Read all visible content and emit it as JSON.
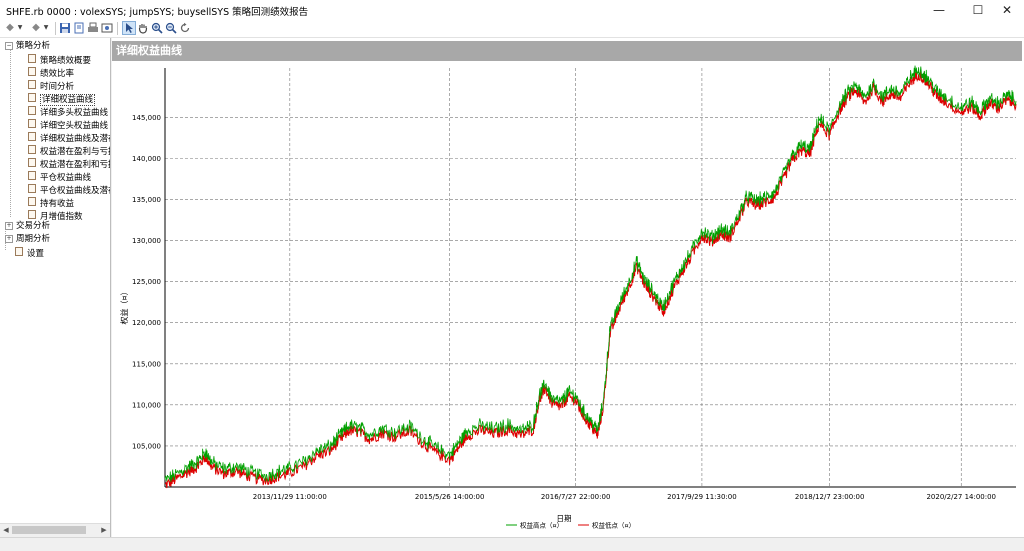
{
  "window": {
    "title": "SHFE.rb 0000 : volexSYS; jumpSYS; buysellSYS 策略回测绩效报告",
    "controls": {
      "minimize": "—",
      "maximize": "☐",
      "close": "✕"
    }
  },
  "toolbar": {
    "buttons": [
      {
        "icon": "back-arrow-icon"
      },
      {
        "icon": "dropdown-icon"
      },
      {
        "icon": "forward-arrow-icon"
      },
      {
        "icon": "dropdown-icon"
      },
      {
        "icon": "save-icon"
      },
      {
        "icon": "export-icon"
      },
      {
        "icon": "print-icon"
      },
      {
        "icon": "print-preview-icon"
      },
      {
        "icon": "pointer-icon"
      },
      {
        "icon": "hand-pan-icon"
      },
      {
        "icon": "zoom-in-icon"
      },
      {
        "icon": "zoom-out-icon"
      },
      {
        "icon": "reset-icon"
      }
    ]
  },
  "sidebar": {
    "tree": [
      {
        "label": "策略分析",
        "expanded": true,
        "children": [
          {
            "label": "策略绩效概要"
          },
          {
            "label": "绩效比率"
          },
          {
            "label": "时间分析"
          },
          {
            "label": "详细权益曲线",
            "selected": true
          },
          {
            "label": "详细多头权益曲线"
          },
          {
            "label": "详细空头权益曲线"
          },
          {
            "label": "详细权益曲线及潜在"
          },
          {
            "label": "权益潜在盈利与亏损"
          },
          {
            "label": "权益潜在盈利和亏损"
          },
          {
            "label": "平仓权益曲线"
          },
          {
            "label": "平仓权益曲线及潜在"
          },
          {
            "label": "持有收益"
          },
          {
            "label": "月增值指数"
          }
        ]
      },
      {
        "label": "交易分析",
        "expanded": false
      },
      {
        "label": "周期分析",
        "expanded": false
      },
      {
        "label": "设置",
        "leaf": true
      }
    ]
  },
  "panel": {
    "title": "详细权益曲线"
  },
  "chart_data": {
    "type": "line",
    "title": "",
    "xlabel": "日期",
    "ylabel": "权益（¤）",
    "ylim": [
      100000,
      151000
    ],
    "yticks": [
      105000,
      110000,
      115000,
      120000,
      125000,
      130000,
      135000,
      140000,
      145000
    ],
    "ytick_labels": [
      "105,000",
      "110,000",
      "115,000",
      "120,000",
      "125,000",
      "130,000",
      "135,000",
      "140,000",
      "145,000"
    ],
    "x_ticks": [
      "2013/11/29 11:00:00",
      "2015/5/26 14:00:00",
      "2016/7/27 22:00:00",
      "2017/9/29 11:30:00",
      "2018/12/7 23:00:00",
      "2020/2/27 14:00:00"
    ],
    "grid": true,
    "legend_position": "bottom-center",
    "series": [
      {
        "name": "权益高点（¤）",
        "color": "#00a000"
      },
      {
        "name": "权益低点（¤）",
        "color": "#dd0000"
      }
    ],
    "equity_points": [
      [
        "2012/10/1",
        100200
      ],
      [
        "2012/11/10",
        101000
      ],
      [
        "2012/12/20",
        101900
      ],
      [
        "2013/1/20",
        102500
      ],
      [
        "2013/2/15",
        103700
      ],
      [
        "2013/3/10",
        102400
      ],
      [
        "2013/4/20",
        101600
      ],
      [
        "2013/6/1",
        101900
      ],
      [
        "2013/7/20",
        101200
      ],
      [
        "2013/9/10",
        100800
      ],
      [
        "2013/10/20",
        101300
      ],
      [
        "2013/11/29",
        101700
      ],
      [
        "2014/1/15",
        102500
      ],
      [
        "2014/3/1",
        103800
      ],
      [
        "2014/4/15",
        104400
      ],
      [
        "2014/5/20",
        105800
      ],
      [
        "2014/6/20",
        106900
      ],
      [
        "2014/7/25",
        106600
      ],
      [
        "2014/8/30",
        105800
      ],
      [
        "2014/10/10",
        106600
      ],
      [
        "2014/11/20",
        106100
      ],
      [
        "2015/1/10",
        106800
      ],
      [
        "2015/3/1",
        105200
      ],
      [
        "2015/4/10",
        104200
      ],
      [
        "2015/5/26",
        103300
      ],
      [
        "2015/6/25",
        104800
      ],
      [
        "2015/7/25",
        106300
      ],
      [
        "2015/9/10",
        106900
      ],
      [
        "2015/10/25",
        106500
      ],
      [
        "2015/12/10",
        107000
      ],
      [
        "2016/1/25",
        106300
      ],
      [
        "2016/3/5",
        107000
      ],
      [
        "2016/3/25",
        110500
      ],
      [
        "2016/4/15",
        112000
      ],
      [
        "2016/5/10",
        110000
      ],
      [
        "2016/6/10",
        109800
      ],
      [
        "2016/7/1",
        111000
      ],
      [
        "2016/7/27",
        110500
      ],
      [
        "2016/8/20",
        108800
      ],
      [
        "2016/9/15",
        107500
      ],
      [
        "2016/10/10",
        106300
      ],
      [
        "2016/10/30",
        110000
      ],
      [
        "2016/11/20",
        118500
      ],
      [
        "2016/12/20",
        121500
      ],
      [
        "2017/1/20",
        124000
      ],
      [
        "2017/2/20",
        126800
      ],
      [
        "2017/3/20",
        124500
      ],
      [
        "2017/4/20",
        123000
      ],
      [
        "2017/5/20",
        121300
      ],
      [
        "2017/6/20",
        123800
      ],
      [
        "2017/7/20",
        126000
      ],
      [
        "2017/8/20",
        127800
      ],
      [
        "2017/9/29",
        130600
      ],
      [
        "2017/11/1",
        129800
      ],
      [
        "2017/12/1",
        130800
      ],
      [
        "2018/1/1",
        130300
      ],
      [
        "2018/2/1",
        132600
      ],
      [
        "2018/3/1",
        134800
      ],
      [
        "2018/4/1",
        134300
      ],
      [
        "2018/5/1",
        134600
      ],
      [
        "2018/6/1",
        135200
      ],
      [
        "2018/7/1",
        137300
      ],
      [
        "2018/8/1",
        139700
      ],
      [
        "2018/9/1",
        141000
      ],
      [
        "2018/10/1",
        140500
      ],
      [
        "2018/11/1",
        144300
      ],
      [
        "2018/12/7",
        142800
      ],
      [
        "2019/1/5",
        145500
      ],
      [
        "2019/2/5",
        147400
      ],
      [
        "2019/3/5",
        148300
      ],
      [
        "2019/4/5",
        146800
      ],
      [
        "2019/5/5",
        148600
      ],
      [
        "2019/6/5",
        146900
      ],
      [
        "2019/7/5",
        147900
      ],
      [
        "2019/8/5",
        147300
      ],
      [
        "2019/9/5",
        149200
      ],
      [
        "2019/10/5",
        150300
      ],
      [
        "2019/11/5",
        149200
      ],
      [
        "2019/12/5",
        147600
      ],
      [
        "2020/1/5",
        146900
      ],
      [
        "2020/2/27",
        145600
      ],
      [
        "2020/4/1",
        146300
      ],
      [
        "2020/5/1",
        145100
      ],
      [
        "2020/6/1",
        146700
      ],
      [
        "2020/7/1",
        146100
      ],
      [
        "2020/8/1",
        147100
      ],
      [
        "2020/8/31",
        146600
      ]
    ]
  }
}
